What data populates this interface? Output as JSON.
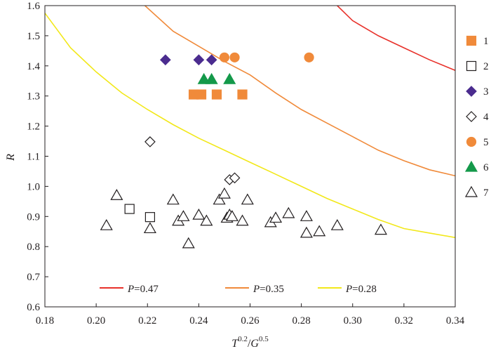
{
  "chart_data": {
    "type": "scatter",
    "xlabel": "T^0.2/G^0.5",
    "xlabel_parts": {
      "t": "T",
      "t_exp": "0.2",
      "sep": "/",
      "g": "G",
      "g_exp": "0.5"
    },
    "ylabel": "R",
    "xlim": [
      0.18,
      0.34
    ],
    "ylim": [
      0.6,
      1.6
    ],
    "xticks": [
      "0.18",
      "0.20",
      "0.22",
      "0.24",
      "0.26",
      "0.28",
      "0.30",
      "0.32",
      "0.34"
    ],
    "yticks": [
      "0.6",
      "0.7",
      "0.8",
      "0.9",
      "1.0",
      "1.1",
      "1.2",
      "1.3",
      "1.4",
      "1.5",
      "1.6"
    ],
    "grid": false,
    "series": [
      {
        "name": "1",
        "marker": "square",
        "filled": true,
        "color": "#f08a3a",
        "points": [
          [
            0.238,
            1.305
          ],
          [
            0.241,
            1.305
          ],
          [
            0.247,
            1.305
          ],
          [
            0.257,
            1.305
          ]
        ]
      },
      {
        "name": "2",
        "marker": "square",
        "filled": false,
        "color": "#231f20",
        "points": [
          [
            0.213,
            0.925
          ],
          [
            0.221,
            0.898
          ]
        ]
      },
      {
        "name": "3",
        "marker": "diamond",
        "filled": true,
        "color": "#4b2c8f",
        "points": [
          [
            0.227,
            1.42
          ],
          [
            0.24,
            1.42
          ],
          [
            0.245,
            1.42
          ]
        ]
      },
      {
        "name": "4",
        "marker": "diamond",
        "filled": false,
        "color": "#231f20",
        "points": [
          [
            0.221,
            1.148
          ],
          [
            0.252,
            1.022
          ],
          [
            0.254,
            1.028
          ]
        ]
      },
      {
        "name": "5",
        "marker": "circle",
        "filled": true,
        "color": "#f08a3a",
        "points": [
          [
            0.25,
            1.428
          ],
          [
            0.254,
            1.428
          ],
          [
            0.283,
            1.428
          ]
        ]
      },
      {
        "name": "6",
        "marker": "triangle",
        "filled": true,
        "color": "#14994a",
        "points": [
          [
            0.242,
            1.355
          ],
          [
            0.245,
            1.355
          ],
          [
            0.252,
            1.355
          ]
        ]
      },
      {
        "name": "7",
        "marker": "triangle",
        "filled": false,
        "color": "#231f20",
        "points": [
          [
            0.204,
            0.87
          ],
          [
            0.208,
            0.97
          ],
          [
            0.221,
            0.86
          ],
          [
            0.23,
            0.955
          ],
          [
            0.232,
            0.885
          ],
          [
            0.234,
            0.9
          ],
          [
            0.236,
            0.81
          ],
          [
            0.24,
            0.905
          ],
          [
            0.243,
            0.885
          ],
          [
            0.248,
            0.955
          ],
          [
            0.25,
            0.975
          ],
          [
            0.251,
            0.895
          ],
          [
            0.252,
            0.905
          ],
          [
            0.253,
            0.9
          ],
          [
            0.257,
            0.885
          ],
          [
            0.259,
            0.955
          ],
          [
            0.268,
            0.88
          ],
          [
            0.27,
            0.895
          ],
          [
            0.275,
            0.91
          ],
          [
            0.282,
            0.9
          ],
          [
            0.282,
            0.845
          ],
          [
            0.287,
            0.85
          ],
          [
            0.294,
            0.87
          ],
          [
            0.311,
            0.855
          ]
        ]
      }
    ],
    "curves": [
      {
        "name": "P=0.47",
        "label_var": "P",
        "label_val": "=0.47",
        "color": "#e8312a",
        "points": [
          [
            0.294,
            1.6
          ],
          [
            0.3,
            1.55
          ],
          [
            0.31,
            1.5
          ],
          [
            0.32,
            1.46
          ],
          [
            0.33,
            1.42
          ],
          [
            0.34,
            1.385
          ]
        ]
      },
      {
        "name": "P=0.35",
        "label_var": "P",
        "label_val": "=0.35",
        "color": "#f08a3a",
        "points": [
          [
            0.219,
            1.6
          ],
          [
            0.23,
            1.515
          ],
          [
            0.24,
            1.465
          ],
          [
            0.25,
            1.415
          ],
          [
            0.26,
            1.37
          ],
          [
            0.27,
            1.31
          ],
          [
            0.28,
            1.255
          ],
          [
            0.29,
            1.21
          ],
          [
            0.3,
            1.165
          ],
          [
            0.31,
            1.12
          ],
          [
            0.32,
            1.085
          ],
          [
            0.33,
            1.055
          ],
          [
            0.34,
            1.035
          ]
        ]
      },
      {
        "name": "P=0.28",
        "label_var": "P",
        "label_val": "=0.28",
        "color": "#f2e81a",
        "points": [
          [
            0.18,
            1.575
          ],
          [
            0.19,
            1.46
          ],
          [
            0.2,
            1.38
          ],
          [
            0.21,
            1.31
          ],
          [
            0.22,
            1.255
          ],
          [
            0.23,
            1.205
          ],
          [
            0.24,
            1.16
          ],
          [
            0.25,
            1.12
          ],
          [
            0.26,
            1.08
          ],
          [
            0.27,
            1.04
          ],
          [
            0.28,
            1.0
          ],
          [
            0.29,
            0.96
          ],
          [
            0.3,
            0.925
          ],
          [
            0.31,
            0.89
          ],
          [
            0.32,
            0.86
          ],
          [
            0.33,
            0.845
          ],
          [
            0.34,
            0.83
          ]
        ]
      }
    ],
    "legend_markers": "right",
    "legend_curves": "bottom"
  }
}
